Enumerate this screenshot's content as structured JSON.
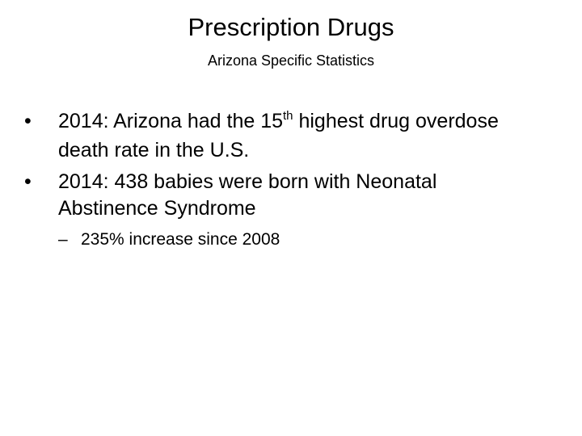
{
  "title": "Prescription Drugs",
  "subtitle": "Arizona Specific Statistics",
  "bullets": [
    {
      "before": "2014: Arizona had the 15",
      "sup": "th",
      "after": " highest drug overdose death rate in the U.S."
    },
    {
      "text": "2014: 438 babies were born with Neonatal Abstinence Syndrome",
      "sub": [
        "235% increase since 2008"
      ]
    }
  ]
}
